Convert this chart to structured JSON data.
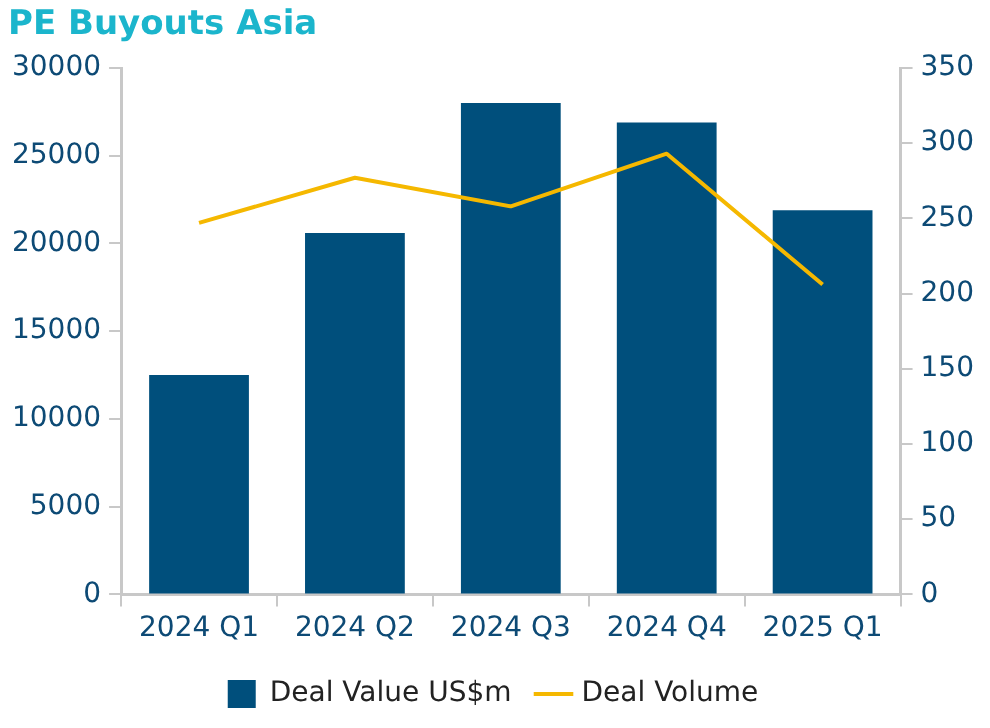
{
  "chart_data": {
    "type": "bar",
    "title": "PE Buyouts Asia",
    "categories": [
      "2024 Q1",
      "2024 Q2",
      "2024 Q3",
      "2024 Q4",
      "2025 Q1"
    ],
    "series": [
      {
        "name": "Deal Value US$m",
        "color": "#004f7c",
        "values": [
          12500,
          20600,
          28000,
          26900,
          21900
        ]
      },
      {
        "name": "Deal Volume",
        "type": "line",
        "axis": "y2",
        "color": "#f5b800",
        "values": [
          247,
          277,
          258,
          293,
          206
        ]
      }
    ],
    "ylim": [
      0,
      30000
    ],
    "yticks": [
      0,
      5000,
      10000,
      15000,
      20000,
      25000,
      30000
    ],
    "y2lim": [
      0,
      350
    ],
    "y2ticks": [
      0,
      50,
      100,
      150,
      200,
      250,
      300,
      350
    ],
    "grid": false,
    "legend": "bottom",
    "marker": "none"
  }
}
